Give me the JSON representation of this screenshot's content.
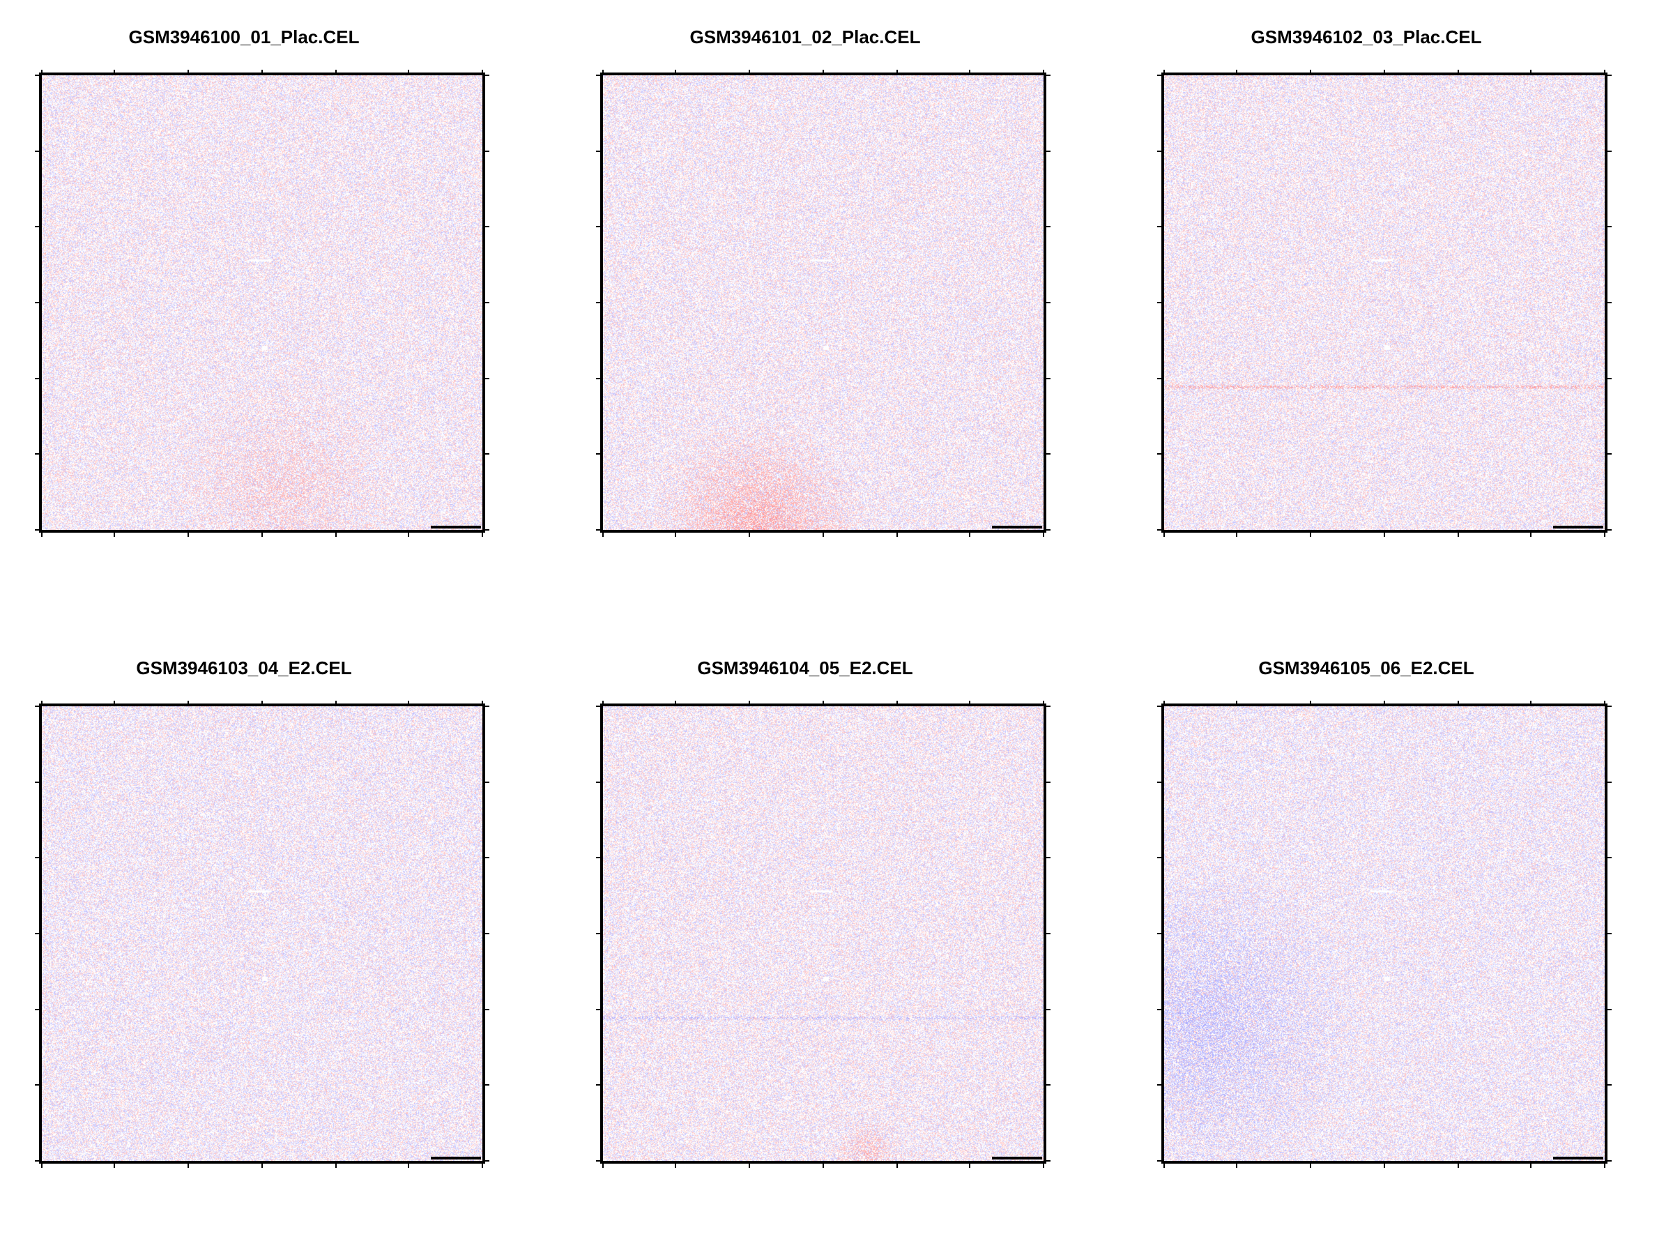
{
  "chart_data": [
    {
      "type": "heatmap",
      "title": "GSM3946100_01_Plac.CEL",
      "colors": {
        "low": "#3a3aff",
        "mid": "#ffffff",
        "high": "#ff3a3a"
      },
      "tint": {
        "red": 0.5,
        "blue": 0.5
      },
      "features": [
        {
          "kind": "blob",
          "color": "red",
          "cx": 0.55,
          "cy": 0.92,
          "r": 0.25,
          "strength": 0.25
        }
      ]
    },
    {
      "type": "heatmap",
      "title": "GSM3946101_02_Plac.CEL",
      "colors": {
        "low": "#3a3aff",
        "mid": "#ffffff",
        "high": "#ff3a3a"
      },
      "tint": {
        "red": 0.5,
        "blue": 0.5
      },
      "features": [
        {
          "kind": "blob",
          "color": "red",
          "cx": 0.35,
          "cy": 1.0,
          "r": 0.25,
          "strength": 0.55
        }
      ]
    },
    {
      "type": "heatmap",
      "title": "GSM3946102_03_Plac.CEL",
      "colors": {
        "low": "#3a3aff",
        "mid": "#ffffff",
        "high": "#ff3a3a"
      },
      "tint": {
        "red": 0.5,
        "blue": 0.5
      },
      "features": [
        {
          "kind": "hline",
          "color": "red",
          "y": 0.685,
          "strength": 0.5
        }
      ]
    },
    {
      "type": "heatmap",
      "title": "GSM3946103_04_E2.CEL",
      "colors": {
        "low": "#3a3aff",
        "mid": "#ffffff",
        "high": "#ff3a3a"
      },
      "tint": {
        "red": 0.45,
        "blue": 0.55
      },
      "features": []
    },
    {
      "type": "heatmap",
      "title": "GSM3946104_05_E2.CEL",
      "colors": {
        "low": "#3a3aff",
        "mid": "#ffffff",
        "high": "#ff3a3a"
      },
      "tint": {
        "red": 0.5,
        "blue": 0.5
      },
      "features": [
        {
          "kind": "hline",
          "color": "blue",
          "y": 0.685,
          "strength": 0.3
        },
        {
          "kind": "blob",
          "color": "red",
          "cx": 0.6,
          "cy": 0.98,
          "r": 0.08,
          "strength": 0.35
        }
      ]
    },
    {
      "type": "heatmap",
      "title": "GSM3946105_06_E2.CEL",
      "colors": {
        "low": "#3a3aff",
        "mid": "#ffffff",
        "high": "#ff3a3a"
      },
      "tint": {
        "red": 0.42,
        "blue": 0.58
      },
      "features": [
        {
          "kind": "blob",
          "color": "blue",
          "cx": 0.1,
          "cy": 0.7,
          "r": 0.35,
          "strength": 0.3
        }
      ]
    }
  ]
}
